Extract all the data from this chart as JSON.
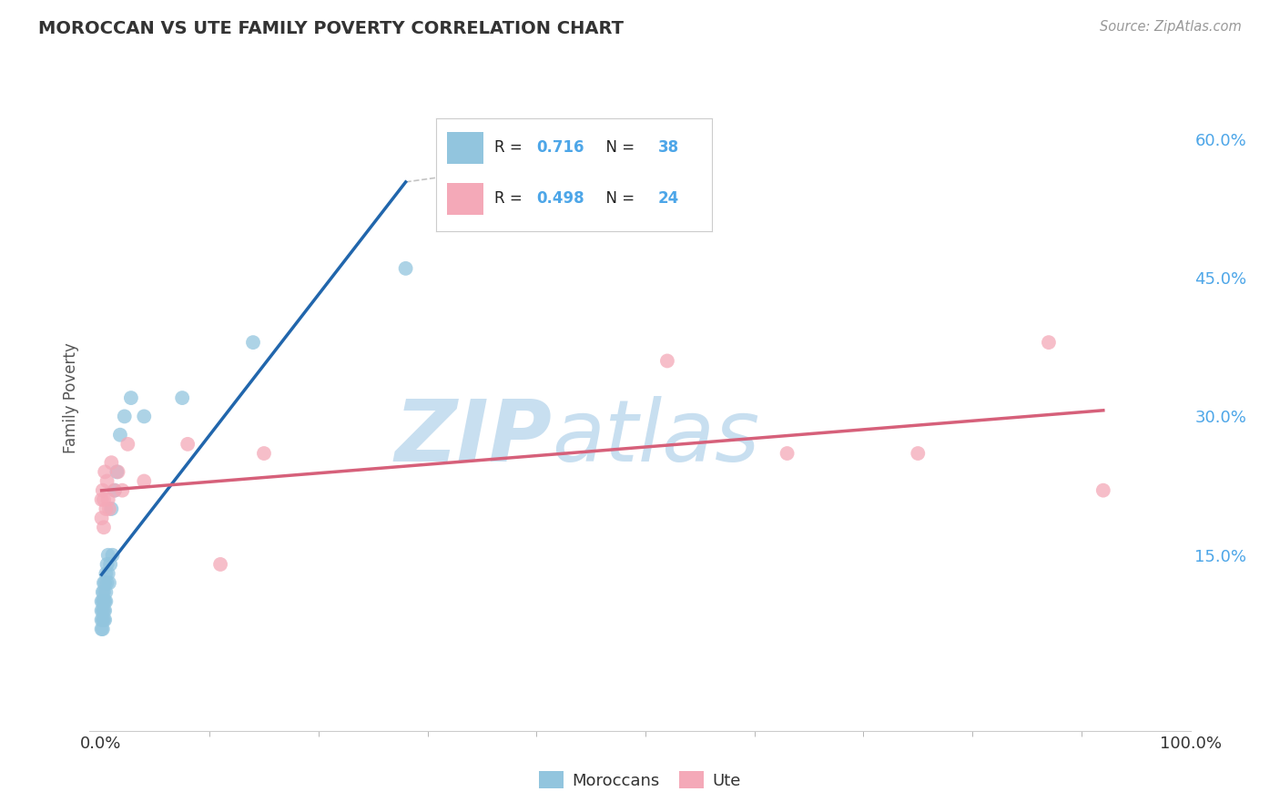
{
  "title": "MOROCCAN VS UTE FAMILY POVERTY CORRELATION CHART",
  "source": "Source: ZipAtlas.com",
  "ylabel": "Family Poverty",
  "xlim": [
    -0.01,
    1.0
  ],
  "ylim": [
    -0.04,
    0.68
  ],
  "y_ticks": [
    0.15,
    0.3,
    0.45,
    0.6
  ],
  "y_tick_labels": [
    "15.0%",
    "30.0%",
    "45.0%",
    "60.0%"
  ],
  "x_tick_labels": [
    "0.0%",
    "100.0%"
  ],
  "moroccan_color": "#92c5de",
  "moroccan_line_color": "#2166ac",
  "ute_color": "#f4a9b8",
  "ute_line_color": "#d6607a",
  "moroccan_R": 0.716,
  "moroccan_N": 38,
  "ute_R": 0.498,
  "ute_N": 24,
  "background_color": "#ffffff",
  "grid_color": "#cccccc",
  "watermark_color": "#c8dff0",
  "watermark_color2": "#c8dff0",
  "tick_color": "#4da6e8",
  "legend_text_color": "#333333",
  "title_color": "#333333",
  "source_color": "#999999",
  "moroccan_x": [
    0.001,
    0.001,
    0.001,
    0.001,
    0.002,
    0.002,
    0.002,
    0.002,
    0.002,
    0.003,
    0.003,
    0.003,
    0.003,
    0.003,
    0.004,
    0.004,
    0.004,
    0.004,
    0.005,
    0.005,
    0.005,
    0.006,
    0.006,
    0.007,
    0.007,
    0.008,
    0.009,
    0.01,
    0.011,
    0.013,
    0.015,
    0.018,
    0.022,
    0.028,
    0.04,
    0.075,
    0.14,
    0.28
  ],
  "moroccan_y": [
    0.07,
    0.08,
    0.09,
    0.1,
    0.07,
    0.08,
    0.09,
    0.1,
    0.11,
    0.08,
    0.09,
    0.1,
    0.11,
    0.12,
    0.08,
    0.09,
    0.1,
    0.12,
    0.1,
    0.11,
    0.13,
    0.12,
    0.14,
    0.13,
    0.15,
    0.12,
    0.14,
    0.2,
    0.15,
    0.22,
    0.24,
    0.28,
    0.3,
    0.32,
    0.3,
    0.32,
    0.38,
    0.46
  ],
  "ute_x": [
    0.001,
    0.001,
    0.002,
    0.003,
    0.003,
    0.004,
    0.005,
    0.006,
    0.007,
    0.008,
    0.01,
    0.013,
    0.016,
    0.02,
    0.025,
    0.04,
    0.08,
    0.11,
    0.15,
    0.52,
    0.63,
    0.75,
    0.87,
    0.92
  ],
  "ute_y": [
    0.19,
    0.21,
    0.22,
    0.18,
    0.21,
    0.24,
    0.2,
    0.23,
    0.21,
    0.2,
    0.25,
    0.22,
    0.24,
    0.22,
    0.27,
    0.23,
    0.27,
    0.14,
    0.26,
    0.36,
    0.26,
    0.26,
    0.38,
    0.22
  ]
}
